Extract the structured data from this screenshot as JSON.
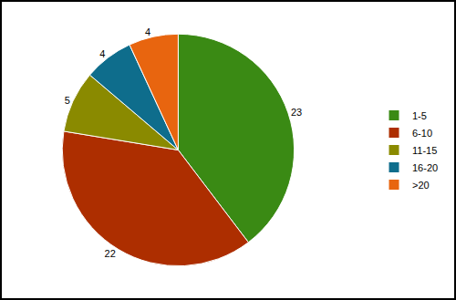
{
  "chart_data": {
    "type": "pie",
    "categories": [
      "1-5",
      "6-10",
      "11-15",
      "16-20",
      ">20"
    ],
    "values": [
      23,
      22,
      5,
      4,
      4
    ],
    "colors": [
      "#3a8a14",
      "#ad2e00",
      "#8a8a00",
      "#0e6d8c",
      "#e8650f"
    ],
    "data_labels": true,
    "legend": "right"
  }
}
